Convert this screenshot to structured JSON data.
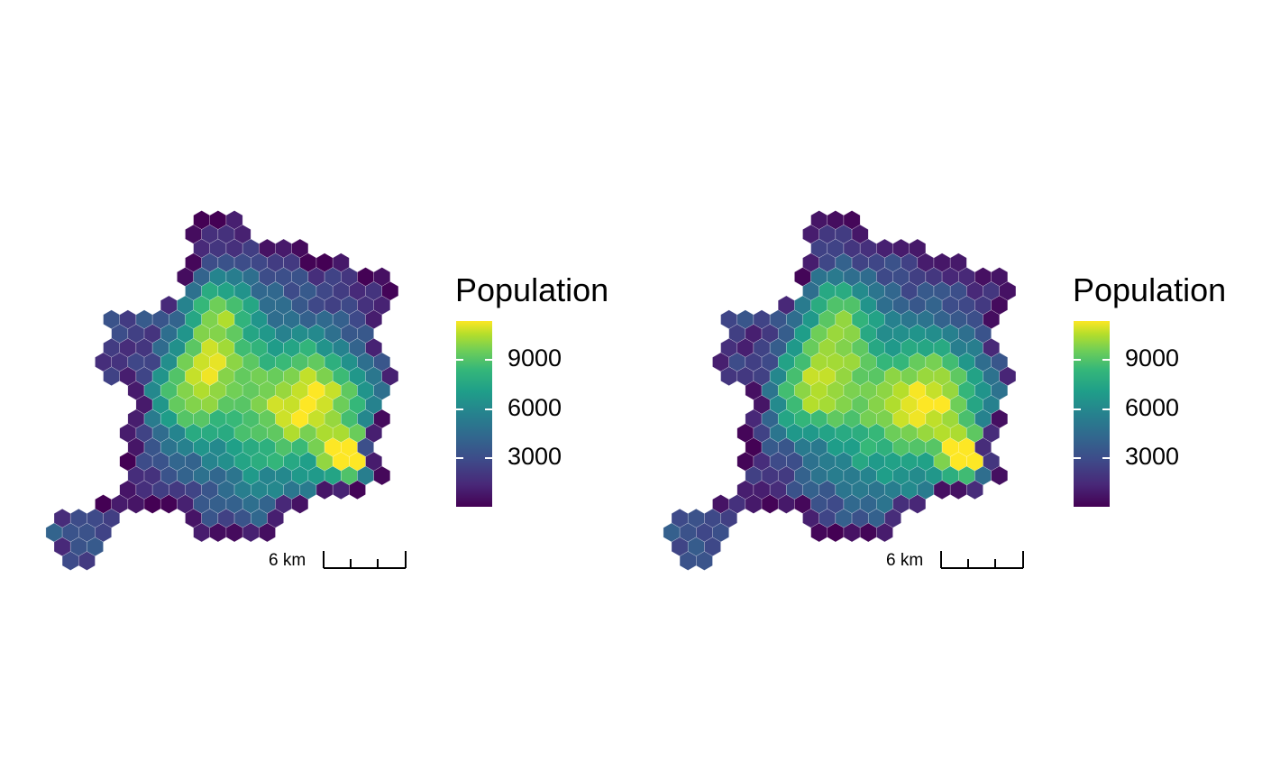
{
  "maps": [
    {
      "legend": {
        "title": "Population",
        "labels": [
          "9000",
          "6000",
          "3000"
        ]
      },
      "scale_bar": {
        "label": "6 km"
      }
    },
    {
      "legend": {
        "title": "Population",
        "labels": [
          "9000",
          "6000",
          "3000"
        ]
      },
      "scale_bar": {
        "label": "6 km"
      }
    }
  ],
  "colors": {
    "low": "#440154",
    "mid": "#21908c",
    "high": "#fde725",
    "palette": "viridis",
    "hex_border": "#ffffff"
  }
}
